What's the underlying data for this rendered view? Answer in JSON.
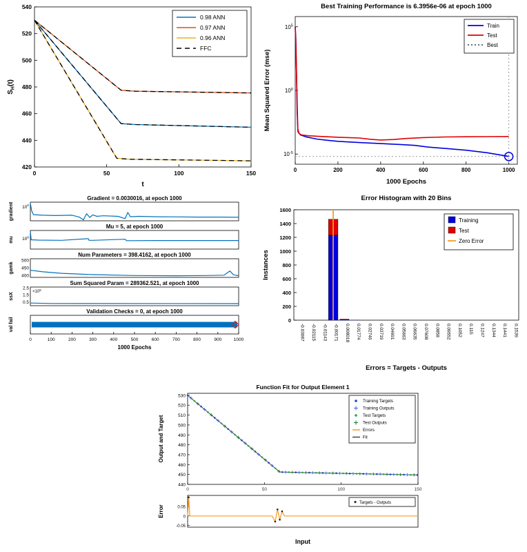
{
  "background": "#ffffff",
  "chart_data": [
    {
      "id": "c1",
      "name": "retention-comparison-plot",
      "type": "line",
      "xlabel": "t",
      "ylabel_parts": {
        "main": "S",
        "sub": "H",
        "rest": "(t)"
      },
      "xlim": [
        0,
        150
      ],
      "ylim": [
        420,
        540
      ],
      "xticks": [
        0,
        50,
        100,
        150
      ],
      "yticks": [
        420,
        440,
        460,
        480,
        500,
        520,
        540
      ],
      "series": [
        {
          "name": "0.97 ANN",
          "color": "#D95319",
          "points": [
            [
              0,
              530
            ],
            [
              60,
              477.5
            ],
            [
              70,
              476.8
            ],
            [
              150,
              475.5
            ]
          ]
        },
        {
          "name": "0.98 ANN",
          "color": "#0072BD",
          "points": [
            [
              0,
              530
            ],
            [
              60,
              452.5
            ],
            [
              70,
              451.8
            ],
            [
              150,
              449.8
            ]
          ]
        },
        {
          "name": "0.96 ANN",
          "color": "#EDB120",
          "points": [
            [
              0,
              530
            ],
            [
              57,
              426.5
            ],
            [
              66,
              425.8
            ],
            [
              150,
              424.6
            ]
          ]
        },
        {
          "name": "FFC",
          "color": "#000000",
          "dash": "7,5",
          "segments": [
            [
              [
                0,
                530
              ],
              [
                60,
                477.5
              ],
              [
                70,
                476.8
              ],
              [
                150,
                475.5
              ]
            ],
            [
              [
                0,
                530
              ],
              [
                60,
                452.5
              ],
              [
                70,
                451.8
              ],
              [
                150,
                449.8
              ]
            ],
            [
              [
                0,
                530
              ],
              [
                57,
                426.5
              ],
              [
                66,
                425.8
              ],
              [
                150,
                424.6
              ]
            ]
          ]
        }
      ],
      "legend": [
        {
          "label": "0.98 ANN",
          "color": "#0072BD"
        },
        {
          "label": "0.97 ANN",
          "color": "#D95319"
        },
        {
          "label": "0.96 ANN",
          "color": "#EDB120"
        },
        {
          "label": "FFC",
          "color": "#000000",
          "dash": "7,5"
        }
      ]
    },
    {
      "id": "c2",
      "name": "best-training-performance-plot",
      "type": "perf",
      "title": "Best Training Performance is 6.3956e-06 at epoch 1000",
      "xlabel": "1000 Epochs",
      "ylabel": "Mean Squared Error  (mse)",
      "xlim": [
        0,
        1040
      ],
      "ylim_exp": [
        -5.8,
        5.8
      ],
      "xticks": [
        0,
        200,
        400,
        600,
        800,
        1000
      ],
      "ytick_exps": [
        "-5",
        "0",
        "5"
      ],
      "best_epoch": 1000,
      "best_exp": -5.194,
      "series": [
        {
          "name": "Train",
          "color": "#0000E0",
          "points_exp": [
            [
              0,
              5
            ],
            [
              3,
              4.0
            ],
            [
              6,
              1.2
            ],
            [
              9,
              -1.8
            ],
            [
              13,
              -3.25
            ],
            [
              25,
              -3.5
            ],
            [
              50,
              -3.65
            ],
            [
              100,
              -3.82
            ],
            [
              150,
              -3.92
            ],
            [
              200,
              -4.0
            ],
            [
              300,
              -4.1
            ],
            [
              400,
              -4.18
            ],
            [
              500,
              -4.26
            ],
            [
              560,
              -4.32
            ],
            [
              620,
              -4.45
            ],
            [
              700,
              -4.56
            ],
            [
              800,
              -4.7
            ],
            [
              900,
              -4.9
            ],
            [
              1000,
              -5.19
            ]
          ]
        },
        {
          "name": "Test",
          "color": "#E00000",
          "points_exp": [
            [
              0,
              5
            ],
            [
              3,
              3.6
            ],
            [
              7,
              0.5
            ],
            [
              12,
              -3.0
            ],
            [
              18,
              -3.4
            ],
            [
              30,
              -3.5
            ],
            [
              60,
              -3.56
            ],
            [
              100,
              -3.6
            ],
            [
              150,
              -3.64
            ],
            [
              200,
              -3.68
            ],
            [
              300,
              -3.74
            ],
            [
              350,
              -3.84
            ],
            [
              400,
              -3.9
            ],
            [
              460,
              -3.86
            ],
            [
              520,
              -3.78
            ],
            [
              600,
              -3.71
            ],
            [
              700,
              -3.66
            ],
            [
              800,
              -3.64
            ],
            [
              900,
              -3.63
            ],
            [
              1000,
              -3.62
            ]
          ]
        }
      ],
      "legend": [
        {
          "label": "Train",
          "color": "#0000E0"
        },
        {
          "label": "Test",
          "color": "#E00000"
        },
        {
          "label": "Best",
          "color": "#555555",
          "dash": "2,3"
        }
      ]
    },
    {
      "id": "c3",
      "name": "training-state-plot",
      "type": "strips",
      "xlim": [
        0,
        1000
      ],
      "xticks": [
        0,
        100,
        200,
        300,
        400,
        500,
        600,
        700,
        800,
        900,
        1000
      ],
      "xlabel": "1000 Epochs",
      "line_color": "#0072BD",
      "marker_color": "#D02020",
      "subplots": [
        {
          "title": "Gradient = 0.0030016, at epoch 1000",
          "ylabel": "gradient",
          "yticks": [
            {
              "exp": "0",
              "pos": 0.75
            }
          ],
          "points": [
            [
              0,
              0.95
            ],
            [
              6,
              0.55
            ],
            [
              15,
              0.33
            ],
            [
              60,
              0.3
            ],
            [
              120,
              0.28
            ],
            [
              200,
              0.3
            ],
            [
              235,
              0.2
            ],
            [
              255,
              0.05
            ],
            [
              270,
              0.38
            ],
            [
              285,
              0.18
            ],
            [
              300,
              0.32
            ],
            [
              320,
              0.24
            ],
            [
              350,
              0.27
            ],
            [
              420,
              0.24
            ],
            [
              455,
              0.12
            ],
            [
              468,
              0.45
            ],
            [
              480,
              0.22
            ],
            [
              520,
              0.24
            ],
            [
              600,
              0.22
            ],
            [
              700,
              0.21
            ],
            [
              800,
              0.2
            ],
            [
              900,
              0.2
            ],
            [
              1000,
              0.19
            ]
          ]
        },
        {
          "title": "Mu = 5, at epoch 1000",
          "ylabel": "mu",
          "yticks": [
            {
              "exp": "0",
              "pos": 0.55
            }
          ],
          "points": [
            [
              0,
              0.95
            ],
            [
              4,
              0.5
            ],
            [
              40,
              0.48
            ],
            [
              150,
              0.47
            ],
            [
              278,
              0.56
            ],
            [
              282,
              0.47
            ],
            [
              300,
              0.47
            ],
            [
              455,
              0.53
            ],
            [
              462,
              0.45
            ],
            [
              600,
              0.46
            ],
            [
              1000,
              0.46
            ]
          ]
        },
        {
          "title": "Num Parameters = 398.4162, at epoch 1000",
          "ylabel": "gamk",
          "yticks": [
            {
              "label": "400",
              "pos": 0.1
            },
            {
              "label": "450",
              "pos": 0.5
            },
            {
              "label": "500",
              "pos": 0.9
            }
          ],
          "points": [
            [
              0,
              0.38
            ],
            [
              60,
              0.3
            ],
            [
              150,
              0.22
            ],
            [
              300,
              0.15
            ],
            [
              500,
              0.1
            ],
            [
              700,
              0.09
            ],
            [
              850,
              0.1
            ],
            [
              930,
              0.12
            ],
            [
              958,
              0.34
            ],
            [
              975,
              0.14
            ],
            [
              1000,
              0.09
            ]
          ]
        },
        {
          "title": "Sum Squared Param = 289362.521, at epoch 1000",
          "ylabel": "ssX",
          "exp_note": "5",
          "yticks": [
            {
              "label": "0.5",
              "pos": 0.19
            },
            {
              "label": "1.5",
              "pos": 0.57
            },
            {
              "label": "2.5",
              "pos": 0.95
            }
          ],
          "points": [
            [
              0,
              0.14
            ],
            [
              100,
              0.12
            ],
            [
              1000,
              0.11
            ]
          ]
        },
        {
          "title": "Validation Checks = 0, at epoch 1000",
          "ylabel": "val fail",
          "band": true
        }
      ]
    },
    {
      "id": "c4",
      "name": "error-histogram-plot",
      "type": "hist",
      "title": "Error Histogram with 20 Bins",
      "xlabel": "Errors = Targets - Outputs",
      "ylabel": "Instances",
      "ylim": [
        0,
        1600
      ],
      "yticks": [
        0,
        200,
        400,
        600,
        800,
        1000,
        1200,
        1400,
        1600
      ],
      "bins": [
        "-0.03087",
        "-0.02115",
        "-0.01143",
        "-0.00171",
        "0.008018",
        "0.01774",
        "0.02746",
        "0.03719",
        "0.04691",
        "0.05663",
        "0.06635",
        "0.07608",
        "0.0858",
        "0.09552",
        "0.1052",
        "0.115",
        "0.1247",
        "0.1344",
        "0.1441",
        "0.1539"
      ],
      "training": [
        3,
        2,
        2,
        1232,
        14,
        4,
        3,
        2,
        2,
        2,
        1,
        1,
        1,
        1,
        1,
        1,
        1,
        1,
        1,
        2
      ],
      "test": [
        1,
        0,
        1,
        230,
        4,
        1,
        0,
        0,
        0,
        0,
        0,
        0,
        0,
        0,
        0,
        0,
        0,
        0,
        0,
        1
      ],
      "zero_bin": 3,
      "colors": {
        "training": "#0000E0",
        "test": "#E00000",
        "zero": "#F59B22"
      },
      "legend": [
        {
          "label": "Training",
          "color": "#0000E0",
          "type": "sq"
        },
        {
          "label": "Test",
          "color": "#E00000",
          "type": "sq"
        },
        {
          "label": "Zero Error",
          "color": "#F59B22",
          "type": "line"
        }
      ]
    },
    {
      "id": "c5",
      "name": "function-fit-plot",
      "type": "fit",
      "title": "Function Fit for Output Element 1",
      "xlabel": "Input",
      "ylabel_main": "Output and Target",
      "ylabel_err": "Error",
      "xlim": [
        0,
        150
      ],
      "ylim": [
        440,
        532
      ],
      "yticks": [
        440,
        450,
        460,
        470,
        480,
        490,
        500,
        510,
        520,
        530
      ],
      "xticks": [
        0,
        50,
        100,
        150
      ],
      "fit_line": [
        [
          0,
          530
        ],
        [
          60,
          452.5
        ],
        [
          150,
          449.5
        ]
      ],
      "fit_color": "#444444",
      "marker_colors": [
        "#2142c7",
        "#3a66e0",
        "#22aa44",
        "#117733"
      ],
      "err_ylim": [
        -0.06,
        0.11
      ],
      "err_yticks": [
        0.05,
        0,
        -0.05
      ],
      "err_color": "#F59B22",
      "err_points": [
        [
          0,
          0
        ],
        [
          0.7,
          0.1
        ],
        [
          1.4,
          0
        ],
        [
          55,
          0
        ],
        [
          57,
          -0.03
        ],
        [
          58.5,
          0.035
        ],
        [
          60,
          -0.02
        ],
        [
          61.5,
          0.025
        ],
        [
          63,
          0
        ],
        [
          150,
          0
        ]
      ],
      "err_markers": [
        [
          0.7,
          0.1
        ],
        [
          57,
          -0.03
        ],
        [
          58.5,
          0.035
        ],
        [
          60,
          -0.02
        ],
        [
          61.5,
          0.025
        ]
      ],
      "legend": [
        {
          "label": "Training Targets",
          "type": "dot",
          "color": "#2142c7"
        },
        {
          "label": "Training Outputs",
          "type": "plus",
          "color": "#3a66e0"
        },
        {
          "label": "Test Targets",
          "type": "dot",
          "color": "#22aa44"
        },
        {
          "label": "Test Outputs",
          "type": "plus",
          "color": "#117733"
        },
        {
          "label": "Errors",
          "type": "line",
          "color": "#F59B22"
        },
        {
          "label": "Fit",
          "type": "line",
          "color": "#444444"
        }
      ],
      "err_legend": {
        "label": "Targets - Outputs",
        "type": "dot",
        "color": "#333333"
      }
    }
  ]
}
